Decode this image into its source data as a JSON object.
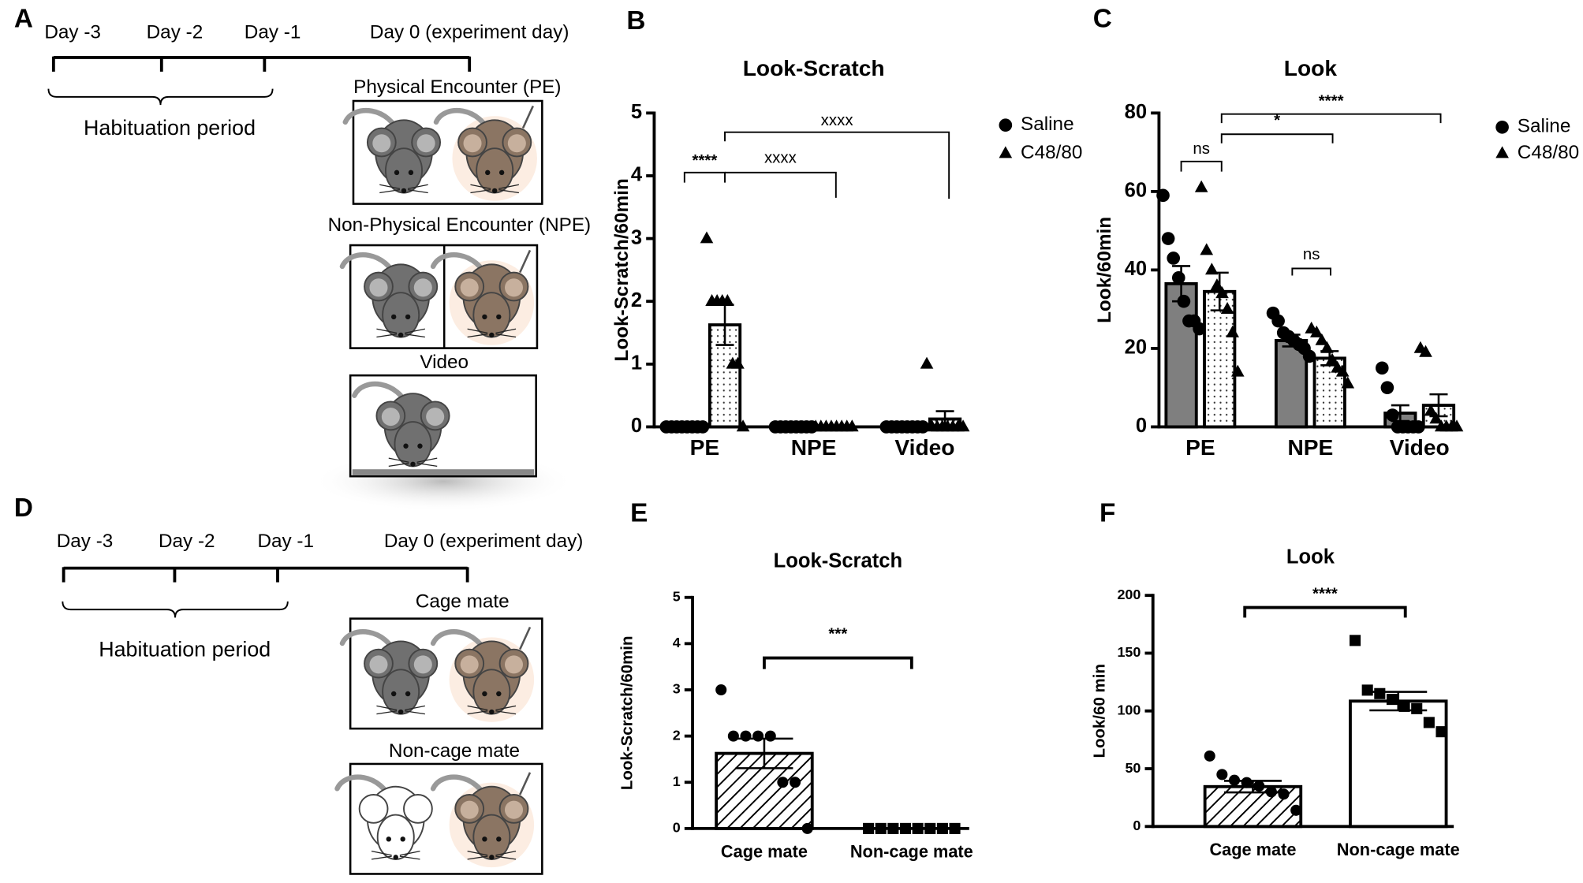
{
  "diagrams": [
    {
      "panel": "A",
      "days": [
        "Day -3",
        "Day -2",
        "Day -1",
        "Day 0 (experiment day)"
      ],
      "period": "Habituation period",
      "conditions": [
        "Physical Encounter (PE)",
        "Non-Physical Encounter (NPE)",
        "Video"
      ]
    },
    {
      "panel": "D",
      "days": [
        "Day -3",
        "Day -2",
        "Day -1",
        "Day 0 (experiment day)"
      ],
      "period": "Habituation period",
      "conditions": [
        "Cage mate",
        "Non-cage mate"
      ]
    }
  ],
  "chart_data": [
    {
      "type": "bar",
      "panel": "B",
      "title": "Look-Scratch",
      "y_label": "Look-Scratch/60min",
      "categories": [
        "PE",
        "NPE",
        "Video"
      ],
      "ylim": [
        0,
        5
      ],
      "yticks": [
        0,
        1,
        2,
        3,
        4,
        5
      ],
      "legend": true,
      "series": [
        {
          "name": "Saline",
          "marker": "circle",
          "color": "#7f7f7f",
          "pattern": "solid",
          "values": [
            0,
            0,
            0
          ],
          "errors": [
            0,
            0,
            0
          ],
          "points": [
            [
              0,
              0,
              0,
              0,
              0,
              0,
              0,
              0
            ],
            [
              0,
              0,
              0,
              0,
              0,
              0,
              0,
              0
            ],
            [
              0,
              0,
              0,
              0,
              0,
              0,
              0,
              0
            ]
          ]
        },
        {
          "name": "C48/80",
          "marker": "triangle",
          "color": "#ffffff",
          "pattern": "dots",
          "values": [
            1.625,
            0,
            0.125
          ],
          "errors": [
            0.32,
            0,
            0.125
          ],
          "points": [
            [
              3,
              2,
              2,
              2,
              2,
              1,
              1,
              0
            ],
            [
              0,
              0,
              0,
              0,
              0,
              0,
              0,
              0
            ],
            [
              1,
              0,
              0,
              0,
              0,
              0,
              0,
              0
            ]
          ]
        }
      ],
      "annotations": [
        "****",
        "xxxx",
        "xxxx"
      ]
    },
    {
      "type": "bar",
      "panel": "C",
      "title": "Look",
      "y_label": "Look/60min",
      "categories": [
        "PE",
        "NPE",
        "Video"
      ],
      "ylim": [
        0,
        80
      ],
      "yticks": [
        0,
        20,
        40,
        60,
        80
      ],
      "legend": true,
      "series": [
        {
          "name": "Saline",
          "marker": "circle",
          "color": "#7f7f7f",
          "pattern": "solid",
          "values": [
            36.5,
            22,
            3.5
          ],
          "errors": [
            4.5,
            1.5,
            2
          ],
          "points": [
            [
              59,
              48,
              43,
              38,
              32,
              27,
              27,
              25
            ],
            [
              29,
              27,
              24,
              23,
              22,
              21,
              20,
              18
            ],
            [
              15,
              10,
              3,
              0,
              0,
              0,
              0,
              0
            ]
          ]
        },
        {
          "name": "C48/80",
          "marker": "triangle",
          "color": "#ffffff",
          "pattern": "dots",
          "values": [
            34.5,
            17.5,
            5.5
          ],
          "errors": [
            4.8,
            1.8,
            2.8
          ],
          "points": [
            [
              61,
              45,
              40,
              36,
              34,
              30,
              24,
              14
            ],
            [
              25,
              24,
              22,
              20,
              17,
              15,
              14,
              11
            ],
            [
              20,
              19,
              4,
              2,
              0,
              0,
              0,
              0
            ]
          ]
        }
      ],
      "annotations": [
        "ns",
        "*",
        "****",
        "ns"
      ]
    },
    {
      "type": "bar",
      "panel": "E",
      "title": "Look-Scratch",
      "y_label": "Look-Scratch/60min",
      "categories": [
        "Cage mate",
        "Non-cage mate"
      ],
      "ylim": [
        0,
        5
      ],
      "yticks": [
        0,
        1,
        2,
        3,
        4,
        5
      ],
      "markers": [
        "circle",
        "square"
      ],
      "patterns": [
        "hatch",
        "solid"
      ],
      "colors": [
        "#ffffff",
        "#ffffff"
      ],
      "values": [
        1.625,
        0
      ],
      "errors": [
        0.32,
        0
      ],
      "points": [
        [
          3,
          2,
          2,
          2,
          2,
          1,
          1,
          0
        ],
        [
          0,
          0,
          0,
          0,
          0,
          0,
          0,
          0
        ]
      ],
      "annotations": [
        "***"
      ]
    },
    {
      "type": "bar",
      "panel": "F",
      "title": "Look",
      "y_label": "Look/60 min",
      "categories": [
        "Cage mate",
        "Non-cage mate"
      ],
      "ylim": [
        0,
        200
      ],
      "yticks": [
        0,
        50,
        100,
        150,
        200
      ],
      "markers": [
        "circle",
        "square"
      ],
      "patterns": [
        "hatch",
        "solid"
      ],
      "colors": [
        "#ffffff",
        "#ffffff"
      ],
      "values": [
        34.5,
        108.5
      ],
      "errors": [
        5,
        8
      ],
      "points": [
        [
          61,
          45,
          40,
          38,
          35,
          30,
          28,
          14
        ],
        [
          161,
          118,
          115,
          110,
          104,
          102,
          90,
          82
        ]
      ],
      "annotations": [
        "****"
      ]
    }
  ]
}
